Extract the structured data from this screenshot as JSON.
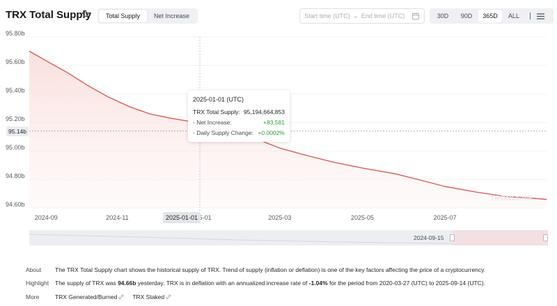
{
  "header": {
    "title": "TRX Total Supply",
    "tabs": [
      "Total Supply",
      "Net Increase"
    ],
    "active_tab": 0,
    "start_placeholder": "Start time (UTC)",
    "end_placeholder": "End time (UTC)",
    "arrow": "→",
    "ranges": [
      "30D",
      "90D",
      "365D",
      "ALL"
    ],
    "active_range": 2
  },
  "chart_data": {
    "type": "area",
    "title": "",
    "xlabel": "",
    "ylabel": "",
    "y_ticks": [
      "95.80b",
      "95.60b",
      "95.40b",
      "95.20b",
      "95.00b",
      "94.80b",
      "94.60b"
    ],
    "y_tick_values": [
      95.8,
      95.6,
      95.4,
      95.2,
      95.0,
      94.8,
      94.6
    ],
    "ylim": [
      94.6,
      95.8
    ],
    "x_ticks": [
      "2024-09",
      "2024-11",
      "2025-01",
      "2025-03",
      "2025-05",
      "2025-07"
    ],
    "x_tick_dates": [
      "2024-09-01",
      "2024-11-01",
      "2025-01-01",
      "2025-03-01",
      "2025-05-01",
      "2025-07-01"
    ],
    "xlim": [
      "2024-08-28",
      "2025-09-14"
    ],
    "series": [
      {
        "name": "TRX Total Supply",
        "color": "#d9534f",
        "fill": "#fdf0ef",
        "points": [
          [
            "2024-08-28",
            95.7
          ],
          [
            "2024-09-10",
            95.63
          ],
          [
            "2024-09-25",
            95.55
          ],
          [
            "2024-10-10",
            95.46
          ],
          [
            "2024-10-25",
            95.38
          ],
          [
            "2024-11-10",
            95.31
          ],
          [
            "2024-11-25",
            95.26
          ],
          [
            "2024-12-10",
            95.23
          ],
          [
            "2025-01-01",
            95.195
          ],
          [
            "2025-01-20",
            95.16
          ],
          [
            "2025-02-10",
            95.09
          ],
          [
            "2025-03-01",
            95.02
          ],
          [
            "2025-03-20",
            94.97
          ],
          [
            "2025-04-10",
            94.92
          ],
          [
            "2025-05-01",
            94.88
          ],
          [
            "2025-05-25",
            94.84
          ],
          [
            "2025-06-15",
            94.79
          ],
          [
            "2025-07-01",
            94.75
          ],
          [
            "2025-07-25",
            94.71
          ],
          [
            "2025-08-15",
            94.68
          ],
          [
            "2025-09-01",
            94.67
          ],
          [
            "2025-09-14",
            94.66
          ]
        ]
      }
    ],
    "reference_line": {
      "value": 95.14,
      "label": "95.14b"
    },
    "hover_date": "2025-01-01",
    "hover_label": "2025-01-01",
    "grid": true,
    "legend": "none"
  },
  "tooltip": {
    "date": "2025-01-01 (UTC)",
    "rows": [
      {
        "label": "TRX Total Supply:",
        "value": "95,194,664,853"
      },
      {
        "label": "- Net Increase:",
        "value": "+83,581"
      },
      {
        "label": "- Daily Supply Change:",
        "value": "+0.0002%"
      }
    ]
  },
  "watermark": "TRONSCAN",
  "navigator": {
    "label": "2024-09-15"
  },
  "info": {
    "about_label": "About",
    "about_text": "The TRX Total Supply chart shows the historical supply of TRX. Trend of supply (inflation or deflation) is one of the key factors affecting the price of a cryptocurrency.",
    "highlight_label": "Highlight",
    "highlight_p1": "The supply of TRX was ",
    "highlight_b1": "94.66b",
    "highlight_p2": " yesterday.  TRX is in deflation with an annualized increase rate of ",
    "highlight_b2": "-1.04%",
    "highlight_p3": " for the period from 2020-03-27 (UTC) to 2025-09-14 (UTC).",
    "more_label": "More",
    "links": [
      "TRX Generated/Burned",
      "TRX Staked"
    ]
  },
  "colors": {
    "accent": "#d9534f",
    "positive": "#2e9a3d"
  }
}
